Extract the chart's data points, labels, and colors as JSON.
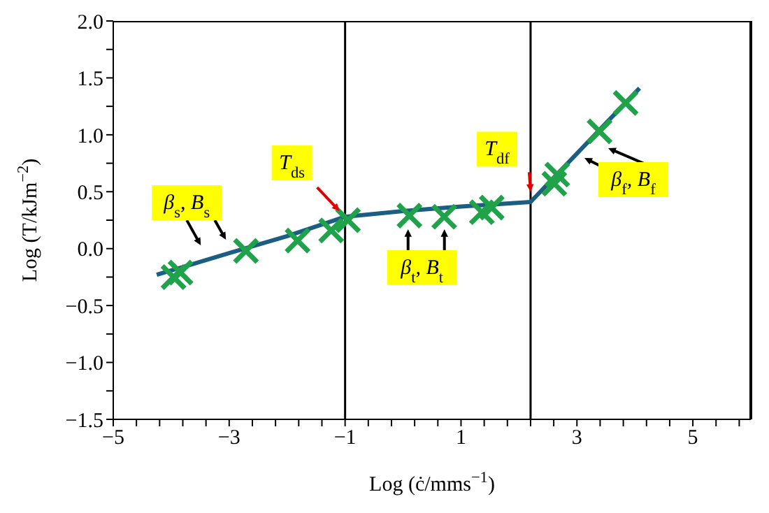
{
  "chart_data": {
    "type": "scatter",
    "xlabel": "Log (ċ/mms$^{−1}$)",
    "ylabel": "Log (T/kJm$^{−2}$)",
    "xlim": [
      -5,
      6
    ],
    "ylim": [
      -1.5,
      2
    ],
    "xticks": [
      -5,
      {
        "value": -4.6,
        "label": null
      },
      {
        "value": -4.2,
        "label": null
      },
      {
        "value": -3.8,
        "label": null
      },
      {
        "value": -3.4,
        "label": null
      },
      -3,
      {
        "value": -2.6,
        "label": null
      },
      {
        "value": -2.2,
        "label": null
      },
      {
        "value": -1.8,
        "label": null
      },
      {
        "value": -1.4,
        "label": null
      },
      -1,
      {
        "value": -0.6,
        "label": null
      },
      {
        "value": -0.2,
        "label": null
      },
      {
        "value": 0.2,
        "label": null
      },
      {
        "value": 0.6,
        "label": null
      },
      1,
      {
        "value": 1.4,
        "label": null
      },
      {
        "value": 1.8,
        "label": null
      },
      {
        "value": 2.2,
        "label": null
      },
      {
        "value": 2.6,
        "label": null
      },
      3,
      {
        "value": 3.4,
        "label": null
      },
      {
        "value": 3.8,
        "label": null
      },
      {
        "value": 4.2,
        "label": null
      },
      {
        "value": 4.6,
        "label": null
      },
      5,
      {
        "value": 5.4,
        "label": null
      },
      {
        "value": 5.8,
        "label": null
      }
    ],
    "yticks": [
      {
        "value": -1.5,
        "label": "−1.5"
      },
      {
        "value": -1.25,
        "label": null
      },
      {
        "value": -1,
        "label": "−1.0"
      },
      {
        "value": -0.75,
        "label": null
      },
      {
        "value": -0.5,
        "label": "−0.5"
      },
      {
        "value": -0.25,
        "label": null
      },
      {
        "value": 0,
        "label": "0.0"
      },
      {
        "value": 0.25,
        "label": null
      },
      {
        "value": 0.5,
        "label": "0.5"
      },
      {
        "value": 0.75,
        "label": null
      },
      {
        "value": 1,
        "label": "1.0"
      },
      {
        "value": 1.25,
        "label": null
      },
      {
        "value": 1.5,
        "label": "1.5"
      },
      {
        "value": 1.75,
        "label": null
      },
      {
        "value": 2,
        "label": "2.0"
      }
    ],
    "grid": false,
    "series": [
      {
        "color": "#1fa24a",
        "marker": "cross",
        "x": [
          -3.96,
          -3.84,
          -2.71,
          -1.82,
          -1.24,
          -0.95,
          0.11,
          0.71,
          1.36,
          1.53,
          2.61,
          2.66,
          3.39,
          3.84
        ],
        "values": [
          -0.25,
          -0.21,
          -0.02,
          0.07,
          0.16,
          0.25,
          0.29,
          0.28,
          0.32,
          0.36,
          0.57,
          0.65,
          1.03,
          1.28
        ]
      },
      {
        "type": "line",
        "color": "#1b5e82",
        "marker": "none",
        "x": [
          -4.25,
          -3,
          -2,
          -1,
          0,
          1,
          2.2,
          4.08
        ],
        "values": [
          -0.23,
          -0.04,
          0.11,
          0.28,
          0.33,
          0.37,
          0.41,
          1.41
        ]
      }
    ],
    "ref_lines": [
      {
        "axis": "x",
        "value": -1,
        "color": "#000000"
      },
      {
        "axis": "x",
        "value": 2.2,
        "color": "#000000"
      }
    ],
    "annotations": [
      {
        "text": "β$_{s}$, B$_{s}$",
        "x": -3.2,
        "y": -0.07
      },
      {
        "text": "T$_{ds}$",
        "x": -1,
        "y": 0.28
      },
      {
        "text": "β$_{t}$, B$_{t}$",
        "x": 0.4,
        "y": 0.22
      },
      {
        "text": "T$_{df}$",
        "x": 2.2,
        "y": 0.45
      },
      "β$_{f}$, B$_{f}$"
    ]
  }
}
